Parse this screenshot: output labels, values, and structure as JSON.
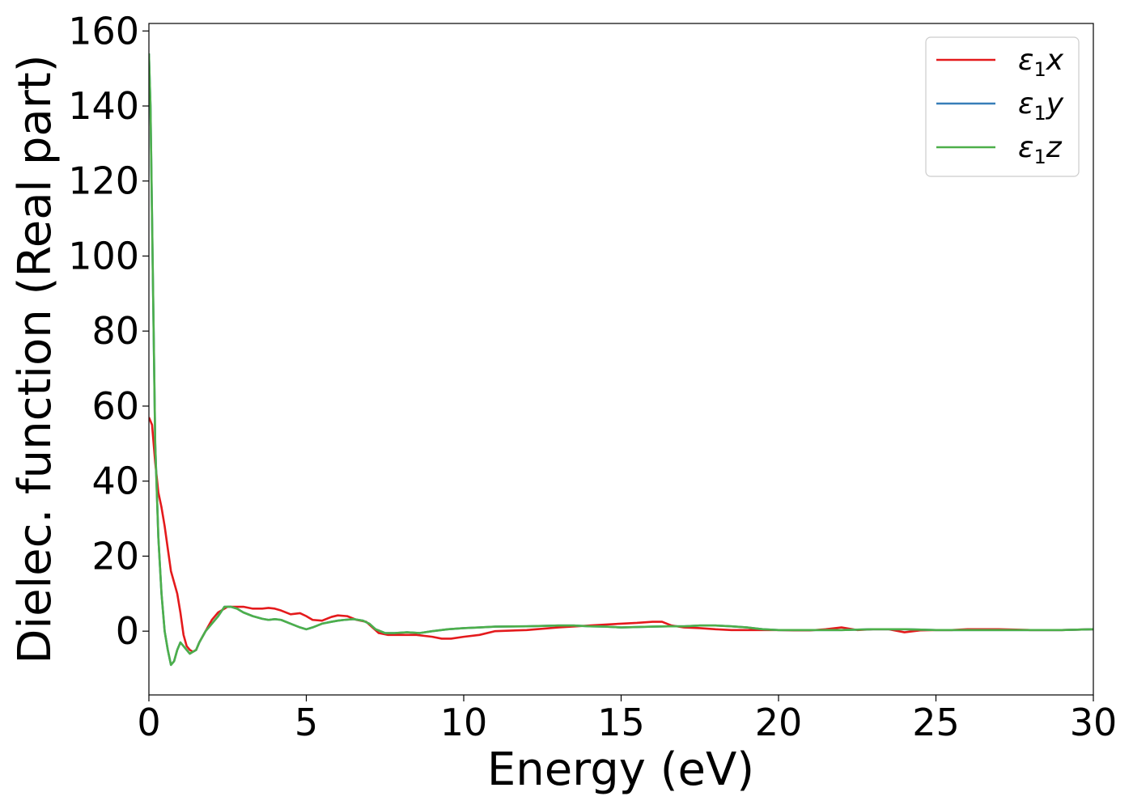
{
  "chart_data": {
    "type": "line",
    "title": "",
    "xlabel": "Energy (eV)",
    "ylabel": "Dielec. function (Real part)",
    "xlim": [
      0,
      30
    ],
    "ylim": [
      -17,
      162
    ],
    "xticks": [
      0,
      5,
      10,
      15,
      20,
      25,
      30
    ],
    "yticks": [
      0,
      20,
      40,
      60,
      80,
      100,
      120,
      140,
      160
    ],
    "grid": false,
    "legend_position": "top-right",
    "series": [
      {
        "name": "ε₁x",
        "legend_base": "ε",
        "legend_sub": "1",
        "legend_var": "x",
        "color": "#e41a1c",
        "x": [
          0,
          0.1,
          0.2,
          0.3,
          0.4,
          0.5,
          0.6,
          0.7,
          0.8,
          0.9,
          1.0,
          1.1,
          1.2,
          1.3,
          1.4,
          1.5,
          1.6,
          1.8,
          2.0,
          2.2,
          2.5,
          2.8,
          3.0,
          3.3,
          3.6,
          3.8,
          4.0,
          4.2,
          4.5,
          4.8,
          5.0,
          5.2,
          5.5,
          5.8,
          6.0,
          6.3,
          6.6,
          6.9,
          7.1,
          7.3,
          7.6,
          8.0,
          8.5,
          9.0,
          9.3,
          9.6,
          10.0,
          10.5,
          11.0,
          12.0,
          13.0,
          14.0,
          15.0,
          15.5,
          16.0,
          16.3,
          16.6,
          17.0,
          17.5,
          18.0,
          18.5,
          19.0,
          19.5,
          20.0,
          20.5,
          21.0,
          21.5,
          22.0,
          22.5,
          23.0,
          23.5,
          24.0,
          24.5,
          25.0,
          25.5,
          26.0,
          27.0,
          28.0,
          29.0,
          30.0
        ],
        "y": [
          57,
          55,
          45,
          37,
          33,
          28,
          22,
          16,
          13,
          10,
          5,
          -1,
          -4,
          -5,
          -5.5,
          -5,
          -3,
          0,
          3,
          5,
          6.5,
          6.5,
          6.5,
          6,
          6,
          6.2,
          6,
          5.5,
          4.5,
          4.8,
          4,
          3,
          2.8,
          3.8,
          4.2,
          4,
          3,
          2.5,
          1,
          -0.5,
          -1,
          -1,
          -1,
          -1.5,
          -2,
          -2,
          -1.5,
          -1,
          0,
          0.3,
          1,
          1.5,
          2,
          2.2,
          2.5,
          2.5,
          1.5,
          1,
          0.8,
          0.5,
          0.3,
          0.3,
          0.3,
          0.3,
          0.2,
          0.2,
          0.5,
          1,
          0.3,
          0.5,
          0.5,
          -0.3,
          0.2,
          0.3,
          0.3,
          0.5,
          0.5,
          0.3,
          0.3,
          0.5
        ]
      },
      {
        "name": "ε₁y",
        "legend_base": "ε",
        "legend_sub": "1",
        "legend_var": "y",
        "color": "#377eb8",
        "x": [
          0,
          0.05,
          0.1,
          0.15,
          0.2,
          0.3,
          0.4,
          0.5,
          0.6,
          0.7,
          0.8,
          0.9,
          1.0,
          1.1,
          1.2,
          1.3,
          1.4,
          1.5,
          1.6,
          1.8,
          2.0,
          2.2,
          2.4,
          2.6,
          2.8,
          3.0,
          3.3,
          3.6,
          3.8,
          4.0,
          4.2,
          4.5,
          4.8,
          5.0,
          5.2,
          5.5,
          5.8,
          6.0,
          6.2,
          6.5,
          6.8,
          7.0,
          7.2,
          7.5,
          7.8,
          8.2,
          8.6,
          9.0,
          9.5,
          10.0,
          10.5,
          11.0,
          12.0,
          13.0,
          13.5,
          14.0,
          14.5,
          15.0,
          16.0,
          16.5,
          17.0,
          17.5,
          18.0,
          18.5,
          19.0,
          19.5,
          20.0,
          21.0,
          22.0,
          23.0,
          24.0,
          25.0,
          26.0,
          27.0,
          28.0,
          29.0,
          30.0
        ],
        "y": [
          154,
          140,
          110,
          80,
          50,
          25,
          10,
          0,
          -5,
          -9,
          -8,
          -5,
          -3,
          -4,
          -5,
          -6,
          -5.5,
          -5,
          -3,
          0,
          2,
          4,
          6.5,
          6.5,
          6,
          5,
          4,
          3.3,
          3,
          3.2,
          3,
          2,
          1,
          0.5,
          1,
          2,
          2.5,
          2.8,
          3,
          3.2,
          2.8,
          2,
          0.5,
          -0.5,
          -0.5,
          -0.3,
          -0.5,
          0,
          0.5,
          0.8,
          1,
          1.2,
          1.3,
          1.5,
          1.5,
          1.3,
          1.2,
          1,
          1.2,
          1.3,
          1.3,
          1.5,
          1.5,
          1.3,
          1,
          0.5,
          0.3,
          0.3,
          0.3,
          0.5,
          0.5,
          0.3,
          0.3,
          0.3,
          0.3,
          0.3,
          0.5
        ]
      },
      {
        "name": "ε₁z",
        "legend_base": "ε",
        "legend_sub": "1",
        "legend_var": "z",
        "color": "#4daf4a",
        "x": [
          0,
          0.05,
          0.1,
          0.15,
          0.2,
          0.3,
          0.4,
          0.5,
          0.6,
          0.7,
          0.8,
          0.9,
          1.0,
          1.1,
          1.2,
          1.3,
          1.4,
          1.5,
          1.6,
          1.8,
          2.0,
          2.2,
          2.4,
          2.6,
          2.8,
          3.0,
          3.3,
          3.6,
          3.8,
          4.0,
          4.2,
          4.5,
          4.8,
          5.0,
          5.2,
          5.5,
          5.8,
          6.0,
          6.2,
          6.5,
          6.8,
          7.0,
          7.2,
          7.5,
          7.8,
          8.2,
          8.6,
          9.0,
          9.5,
          10.0,
          10.5,
          11.0,
          12.0,
          13.0,
          13.5,
          14.0,
          14.5,
          15.0,
          16.0,
          16.5,
          17.0,
          17.5,
          18.0,
          18.5,
          19.0,
          19.5,
          20.0,
          21.0,
          22.0,
          23.0,
          24.0,
          25.0,
          26.0,
          27.0,
          28.0,
          29.0,
          30.0
        ],
        "y": [
          154,
          140,
          110,
          80,
          50,
          25,
          10,
          0,
          -5,
          -9,
          -8,
          -5,
          -3,
          -4,
          -5,
          -6,
          -5.5,
          -5,
          -3,
          0,
          2,
          4,
          6.5,
          6.5,
          6,
          5,
          4,
          3.3,
          3,
          3.2,
          3,
          2,
          1,
          0.5,
          1,
          2,
          2.5,
          2.8,
          3,
          3.2,
          2.8,
          2,
          0.5,
          -0.5,
          -0.5,
          -0.3,
          -0.5,
          0,
          0.5,
          0.8,
          1,
          1.2,
          1.3,
          1.5,
          1.5,
          1.3,
          1.2,
          1,
          1.2,
          1.3,
          1.3,
          1.5,
          1.5,
          1.3,
          1,
          0.5,
          0.3,
          0.3,
          0.3,
          0.5,
          0.5,
          0.3,
          0.3,
          0.3,
          0.3,
          0.3,
          0.5
        ]
      }
    ]
  }
}
